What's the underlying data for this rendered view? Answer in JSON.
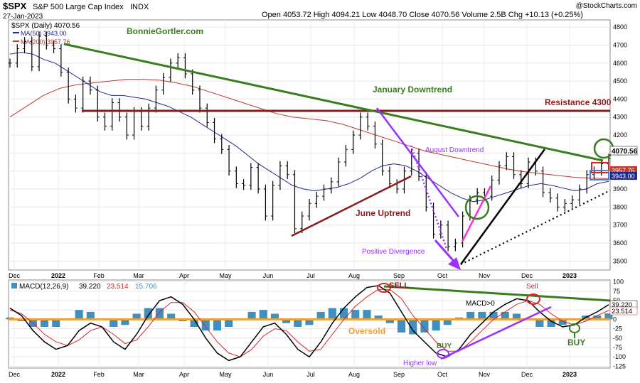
{
  "header": {
    "symbol": "$SPX",
    "name": "S&P 500 Large Cap Index",
    "exchange": "INDX",
    "date": "27-Jan-2023",
    "ohlc": "Open 4053.72  High 4094.21  Low 4048.70  Close 4070.56  Volume 2.5B  Chg +10.13 (+0.25%)",
    "watermark": "@StockCharts.com",
    "author": "BonnieGortler.com"
  },
  "legend": {
    "price": "$SPX (Daily) 4070.56",
    "ma50": "MA(50) 3943.00",
    "ma200": "MA(200) 3957.76"
  },
  "colors": {
    "price": "#000000",
    "ma50": "#1f2a8a",
    "ma200": "#c0392b",
    "downtrend": "#3a7d1f",
    "resistance": "#8b1a1a",
    "purple": "#9b30ff",
    "magenta": "#ff33cc",
    "macd_hist": "#3f8fc0",
    "zero_line": "#f0a030"
  },
  "annotations": {
    "jan_downtrend": "January Downtrend",
    "resistance": "Resistance 4300",
    "aug_downtrend": "August Downtrend",
    "june_uptrend": "June Uptrend",
    "pos_div": "Positive Divergence",
    "sell1": "SELL",
    "sell2": "Sell",
    "macd0": "MACD>0",
    "oversold": "Oversold",
    "buy1": "BUY",
    "buy2": "BUY",
    "higher_low": "Higher low"
  },
  "price_labels": {
    "last": "4070.56",
    "ma200": "3957.76",
    "ma50": "3943.00"
  },
  "macd_legend": {
    "label": "MACD(12,26,9)",
    "macd": "39.220",
    "signal": "23.514",
    "hist": "15.706"
  },
  "macd_labels": {
    "macd": "39.220",
    "signal": "23.514"
  },
  "chart_data": [
    {
      "type": "line",
      "title": "$SPX (Daily) 4070.56",
      "x_ticks": [
        "Dec",
        "2022",
        "Feb",
        "Mar",
        "Apr",
        "May",
        "Jun",
        "Jul",
        "Aug",
        "Sep",
        "Oct",
        "Nov",
        "Dec",
        "2023"
      ],
      "y_ticks": [
        3500,
        3600,
        3700,
        3800,
        3900,
        4000,
        4100,
        4200,
        4300,
        4400,
        4500,
        4600,
        4700,
        4800
      ],
      "ylim": [
        3450,
        4840
      ],
      "series": [
        {
          "name": "$SPX (Daily) 4070.56",
          "values": [
            4600,
            4680,
            4720,
            4580,
            4750,
            4700,
            4680,
            4550,
            4400,
            4350,
            4500,
            4450,
            4300,
            4250,
            4380,
            4300,
            4200,
            4330,
            4250,
            4350,
            4450,
            4520,
            4600,
            4630,
            4540,
            4450,
            4350,
            4270,
            4180,
            4120,
            4000,
            3930,
            3920,
            4020,
            3900,
            3750,
            3920,
            4030,
            3980,
            3680,
            3750,
            3820,
            3860,
            3900,
            3940,
            4050,
            4120,
            4200,
            4300,
            4250,
            4150,
            4000,
            3930,
            3900,
            4000,
            4100,
            3970,
            3800,
            3650,
            3700,
            3580,
            3600,
            3750,
            3840,
            3880,
            3860,
            3950,
            4030,
            4080,
            3980,
            3930,
            4050,
            4000,
            3880,
            3850,
            3800,
            3820,
            3840,
            3900,
            3980,
            4000,
            4040,
            4070.56
          ]
        },
        {
          "name": "MA(50) 3943.00",
          "values": [
            4650,
            4660,
            4650,
            4620,
            4600,
            4560,
            4520,
            4480,
            4440,
            4420,
            4420,
            4410,
            4400,
            4380,
            4360,
            4330,
            4300,
            4260,
            4220,
            4180,
            4140,
            4090,
            4040,
            4000,
            3960,
            3920,
            3900,
            3890,
            3900,
            3910,
            3930,
            3960,
            4000,
            4030,
            4040,
            4030,
            4000,
            3960,
            3920,
            3880,
            3850,
            3830,
            3840,
            3860,
            3880,
            3900,
            3920,
            3930,
            3920,
            3905,
            3890,
            3900,
            3930,
            3943
          ]
        },
        {
          "name": "MA(200) 3957.76",
          "values": [
            4300,
            4360,
            4420,
            4460,
            4480,
            4490,
            4500,
            4510,
            4510,
            4505,
            4490,
            4470,
            4440,
            4410,
            4380,
            4350,
            4320,
            4300,
            4290,
            4280,
            4260,
            4230,
            4200,
            4170,
            4140,
            4110,
            4090,
            4070,
            4050,
            4030,
            4010,
            3995,
            3985,
            3975,
            3965,
            3960,
            3958
          ]
        }
      ]
    },
    {
      "type": "bar",
      "title": "MACD(12,26,9) 39.220, 23.514, 15.706",
      "x_ticks": [
        "Dec",
        "2022",
        "Feb",
        "Mar",
        "Apr",
        "May",
        "Jun",
        "Jul",
        "Aug",
        "Sep",
        "Oct",
        "Nov",
        "Dec",
        "2023"
      ],
      "y_ticks": [
        100,
        75,
        50,
        25,
        0,
        -25,
        -50,
        -75,
        -100,
        -125
      ],
      "ylim": [
        -130,
        105
      ],
      "series": [
        {
          "name": "MACD",
          "values": [
            30,
            10,
            -30,
            -60,
            -80,
            -70,
            -30,
            -10,
            -20,
            -60,
            -80,
            -40,
            10,
            50,
            60,
            40,
            0,
            -50,
            -90,
            -110,
            -100,
            -60,
            -20,
            -10,
            -40,
            -80,
            -100,
            -60,
            -10,
            30,
            60,
            85,
            90,
            70,
            20,
            -30,
            -60,
            -90,
            -100,
            -80,
            -40,
            -10,
            20,
            40,
            55,
            50,
            20,
            -5,
            -20,
            -15,
            5,
            20,
            39.22
          ]
        },
        {
          "name": "Signal",
          "values": [
            25,
            15,
            -10,
            -40,
            -60,
            -70,
            -55,
            -30,
            -20,
            -40,
            -65,
            -55,
            -20,
            20,
            45,
            45,
            20,
            -20,
            -60,
            -90,
            -100,
            -80,
            -45,
            -25,
            -30,
            -60,
            -85,
            -80,
            -40,
            0,
            35,
            60,
            80,
            80,
            55,
            10,
            -25,
            -60,
            -85,
            -85,
            -60,
            -30,
            0,
            20,
            40,
            50,
            40,
            15,
            -5,
            -15,
            -5,
            10,
            23.514
          ]
        },
        {
          "name": "Histogram",
          "values": [
            5,
            -5,
            -20,
            -20,
            -20,
            0,
            25,
            20,
            0,
            -20,
            -15,
            15,
            30,
            30,
            15,
            -5,
            -20,
            -30,
            -30,
            -20,
            0,
            20,
            25,
            15,
            -10,
            -20,
            -15,
            20,
            30,
            30,
            25,
            25,
            10,
            -10,
            -35,
            -40,
            -35,
            -30,
            -15,
            5,
            20,
            20,
            20,
            20,
            15,
            0,
            -20,
            -20,
            -15,
            0,
            10,
            10,
            15.706
          ]
        }
      ]
    }
  ]
}
